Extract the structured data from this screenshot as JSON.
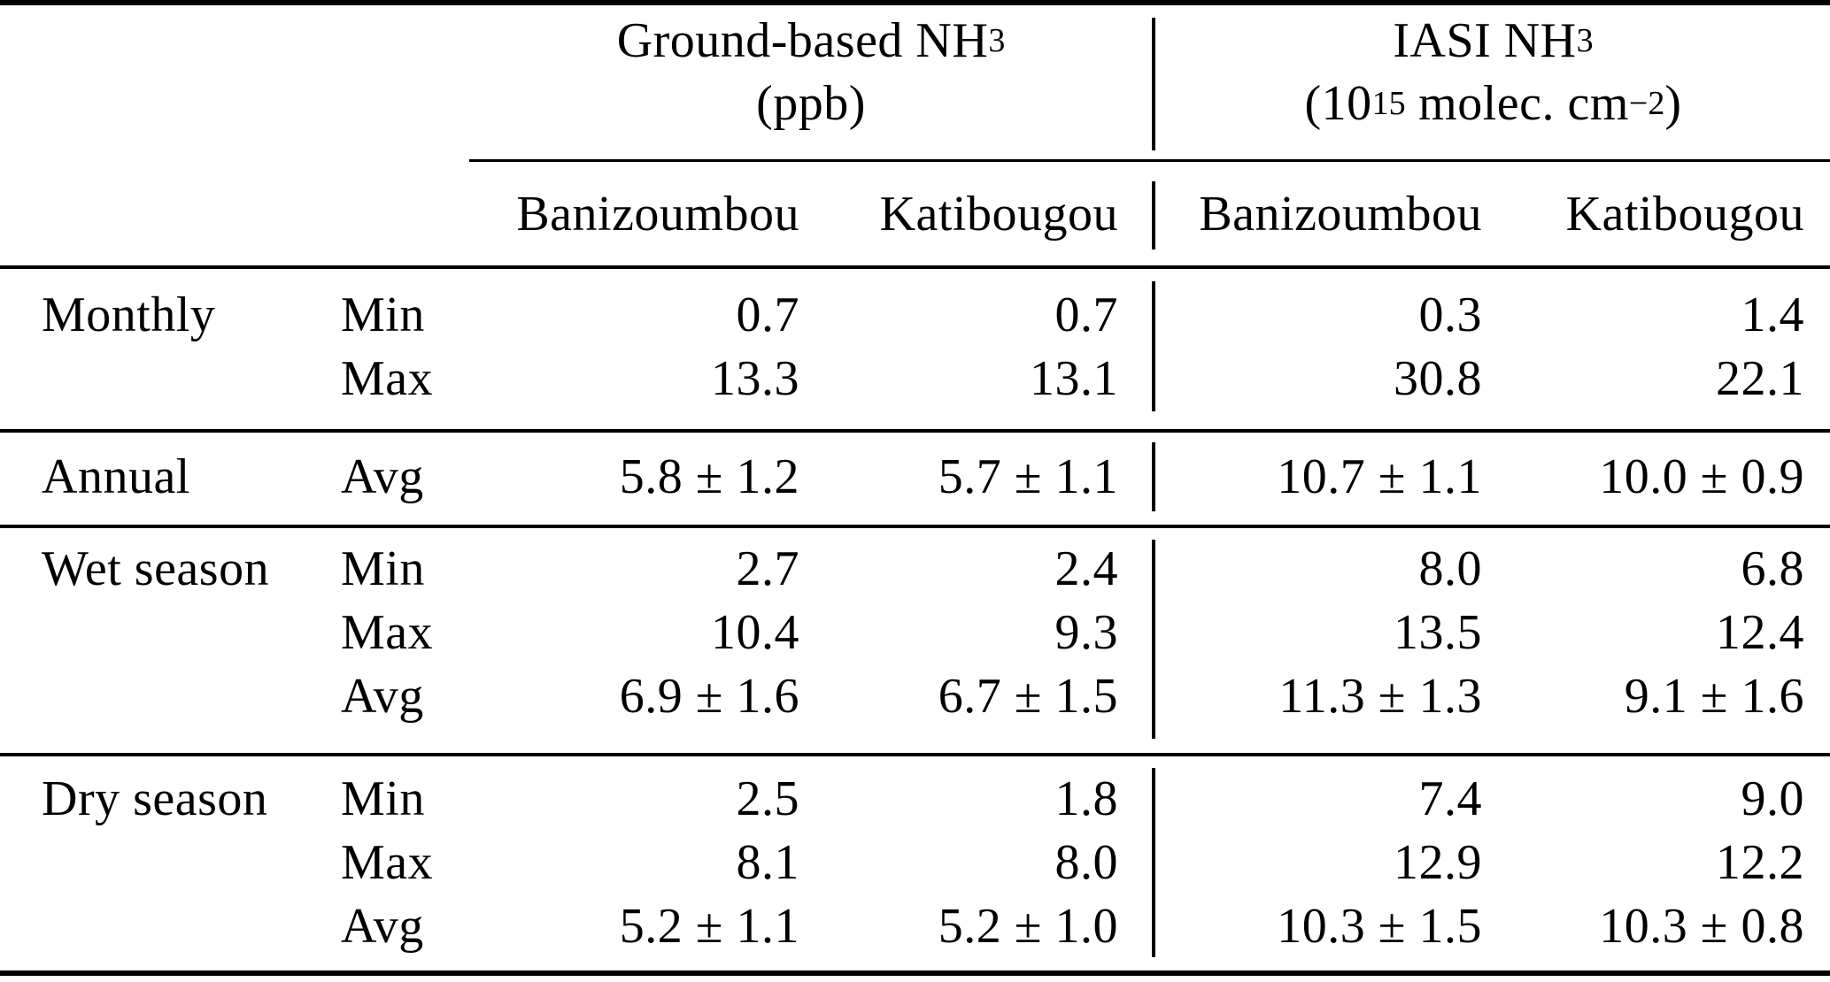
{
  "colors": {
    "text": "#000000",
    "background": "#ffffff",
    "rule": "#000000"
  },
  "table": {
    "groups": [
      {
        "title_main": "Ground-based NH",
        "title_sub": "3",
        "unit": "(ppb)"
      },
      {
        "title_main": "IASI NH",
        "title_sub": "3",
        "unit_pre": "(10",
        "unit_sup": "15",
        "unit_mid": " molec. cm",
        "unit_sup2": "−2",
        "unit_post": ")"
      }
    ],
    "col_headers": [
      "Banizoumbou",
      "Katibougou",
      "Banizoumbou",
      "Katibougou"
    ],
    "sections": [
      {
        "label": "Monthly",
        "rows": [
          {
            "stat": "Min",
            "values": [
              "0.7",
              "0.7",
              "0.3",
              "1.4"
            ]
          },
          {
            "stat": "Max",
            "values": [
              "13.3",
              "13.1",
              "30.8",
              "22.1"
            ]
          }
        ]
      },
      {
        "label": "Annual",
        "rows": [
          {
            "stat": "Avg",
            "values": [
              "5.8 ± 1.2",
              "5.7 ± 1.1",
              "10.7 ± 1.1",
              "10.0 ± 0.9"
            ]
          }
        ]
      },
      {
        "label": "Wet season",
        "rows": [
          {
            "stat": "Min",
            "values": [
              "2.7",
              "2.4",
              "8.0",
              "6.8"
            ]
          },
          {
            "stat": "Max",
            "values": [
              "10.4",
              "9.3",
              "13.5",
              "12.4"
            ]
          },
          {
            "stat": "Avg",
            "values": [
              "6.9 ± 1.6",
              "6.7 ± 1.5",
              "11.3 ± 1.3",
              "9.1 ± 1.6"
            ]
          }
        ]
      },
      {
        "label": "Dry season",
        "rows": [
          {
            "stat": "Min",
            "values": [
              "2.5",
              "1.8",
              "7.4",
              "9.0"
            ]
          },
          {
            "stat": "Max",
            "values": [
              "8.1",
              "8.0",
              "12.9",
              "12.2"
            ]
          },
          {
            "stat": "Avg",
            "values": [
              "5.2 ± 1.1",
              "5.2 ± 1.0",
              "10.3 ± 1.5",
              "10.3 ± 0.8"
            ]
          }
        ]
      }
    ]
  }
}
